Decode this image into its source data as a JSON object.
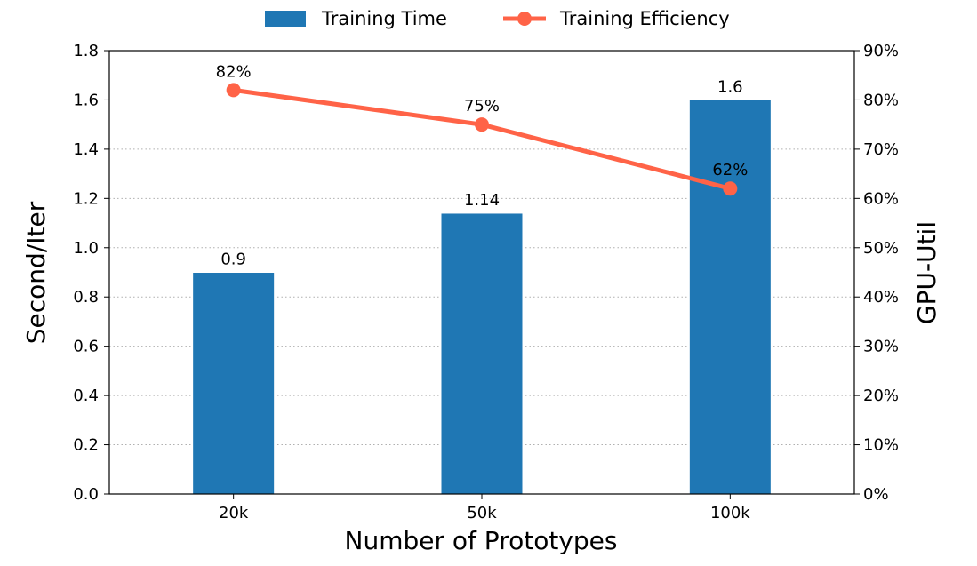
{
  "chart_data": {
    "type": "bar",
    "categories": [
      "20k",
      "50k",
      "100k"
    ],
    "xlabel": "Number of Prototypes",
    "ylabel": "Second/Iter",
    "y2label": "GPU-Util",
    "ylim": [
      0,
      1.8
    ],
    "y2lim": [
      0,
      90
    ],
    "yticks": [
      "0.0",
      "0.2",
      "0.4",
      "0.6",
      "0.8",
      "1.0",
      "1.2",
      "1.4",
      "1.6",
      "1.8"
    ],
    "y2ticks": [
      "0%",
      "10%",
      "20%",
      "30%",
      "40%",
      "50%",
      "60%",
      "70%",
      "80%",
      "90%"
    ],
    "grid": "horizontal-dotted",
    "legend_position": "top-center",
    "series": [
      {
        "name": "Training Time",
        "kind": "bar",
        "axis": "left",
        "color": "#1f77b4",
        "values": [
          0.9,
          1.14,
          1.6
        ],
        "labels": [
          "0.9",
          "1.14",
          "1.6"
        ]
      },
      {
        "name": "Training Efficiency",
        "kind": "line",
        "axis": "right",
        "color": "#ff6347",
        "values": [
          82,
          75,
          62
        ],
        "labels": [
          "82%",
          "75%",
          "62%"
        ]
      }
    ]
  }
}
